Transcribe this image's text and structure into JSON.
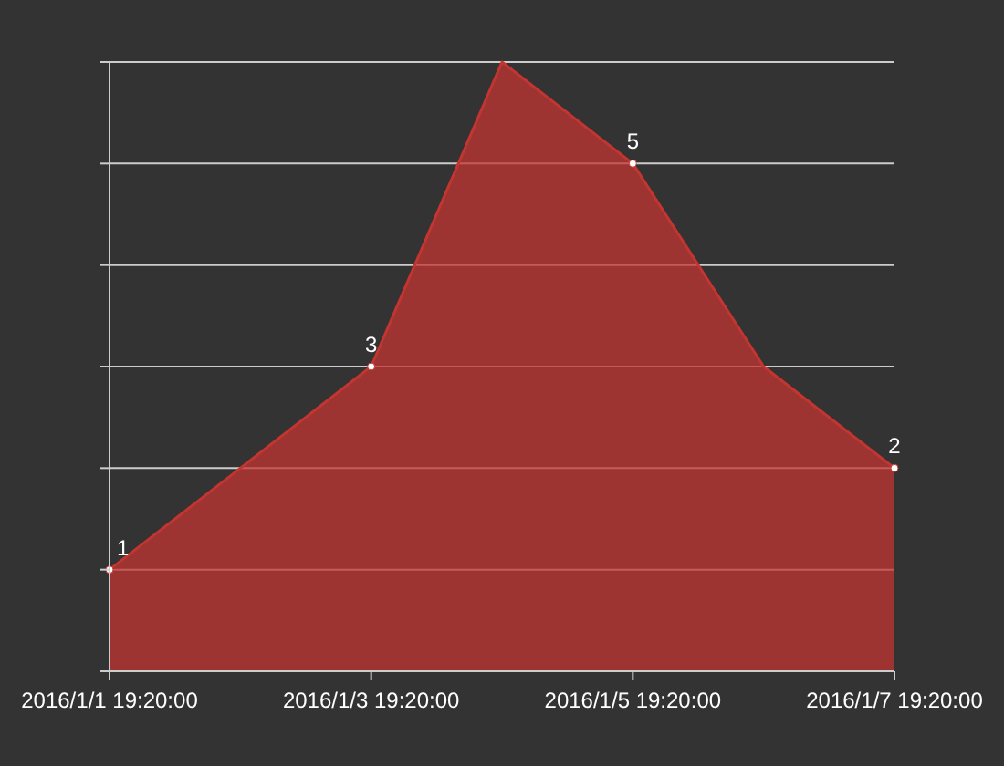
{
  "chart_data": {
    "type": "area",
    "x": [
      "2016-01-01T19:20",
      "2016-01-02T19:20",
      "2016-01-03T19:20",
      "2016-01-04T19:20",
      "2016-01-05T19:20",
      "2016-01-06T19:20",
      "2016-01-07T19:20"
    ],
    "values": [
      1,
      2,
      3,
      6,
      5,
      3,
      2
    ],
    "value_labels": [
      "1",
      null,
      "3",
      null,
      "5",
      null,
      "2"
    ],
    "color": "#c23531",
    "xlim": [
      "2016-01-01T19:20",
      "2016-01-07T19:20"
    ],
    "xticks": [
      {
        "value": "2016-01-01T19:20",
        "label": "2016/1/1 19:20:00"
      },
      {
        "value": "2016-01-03T19:20",
        "label": "2016/1/3 19:20:00"
      },
      {
        "value": "2016-01-05T19:20",
        "label": "2016/1/5 19:20:00"
      },
      {
        "value": "2016-01-07T19:20",
        "label": "2016/1/7 19:20:00"
      }
    ],
    "ylim": [
      0,
      6
    ],
    "yticks": [
      {
        "value": 0,
        "label": null
      },
      {
        "value": 1,
        "label": null
      },
      {
        "value": 2,
        "label": null
      },
      {
        "value": 3,
        "label": null
      },
      {
        "value": 4,
        "label": null
      },
      {
        "value": 5,
        "label": null
      },
      {
        "value": 6,
        "label": null
      }
    ],
    "grid": "y",
    "marker": "circle"
  }
}
